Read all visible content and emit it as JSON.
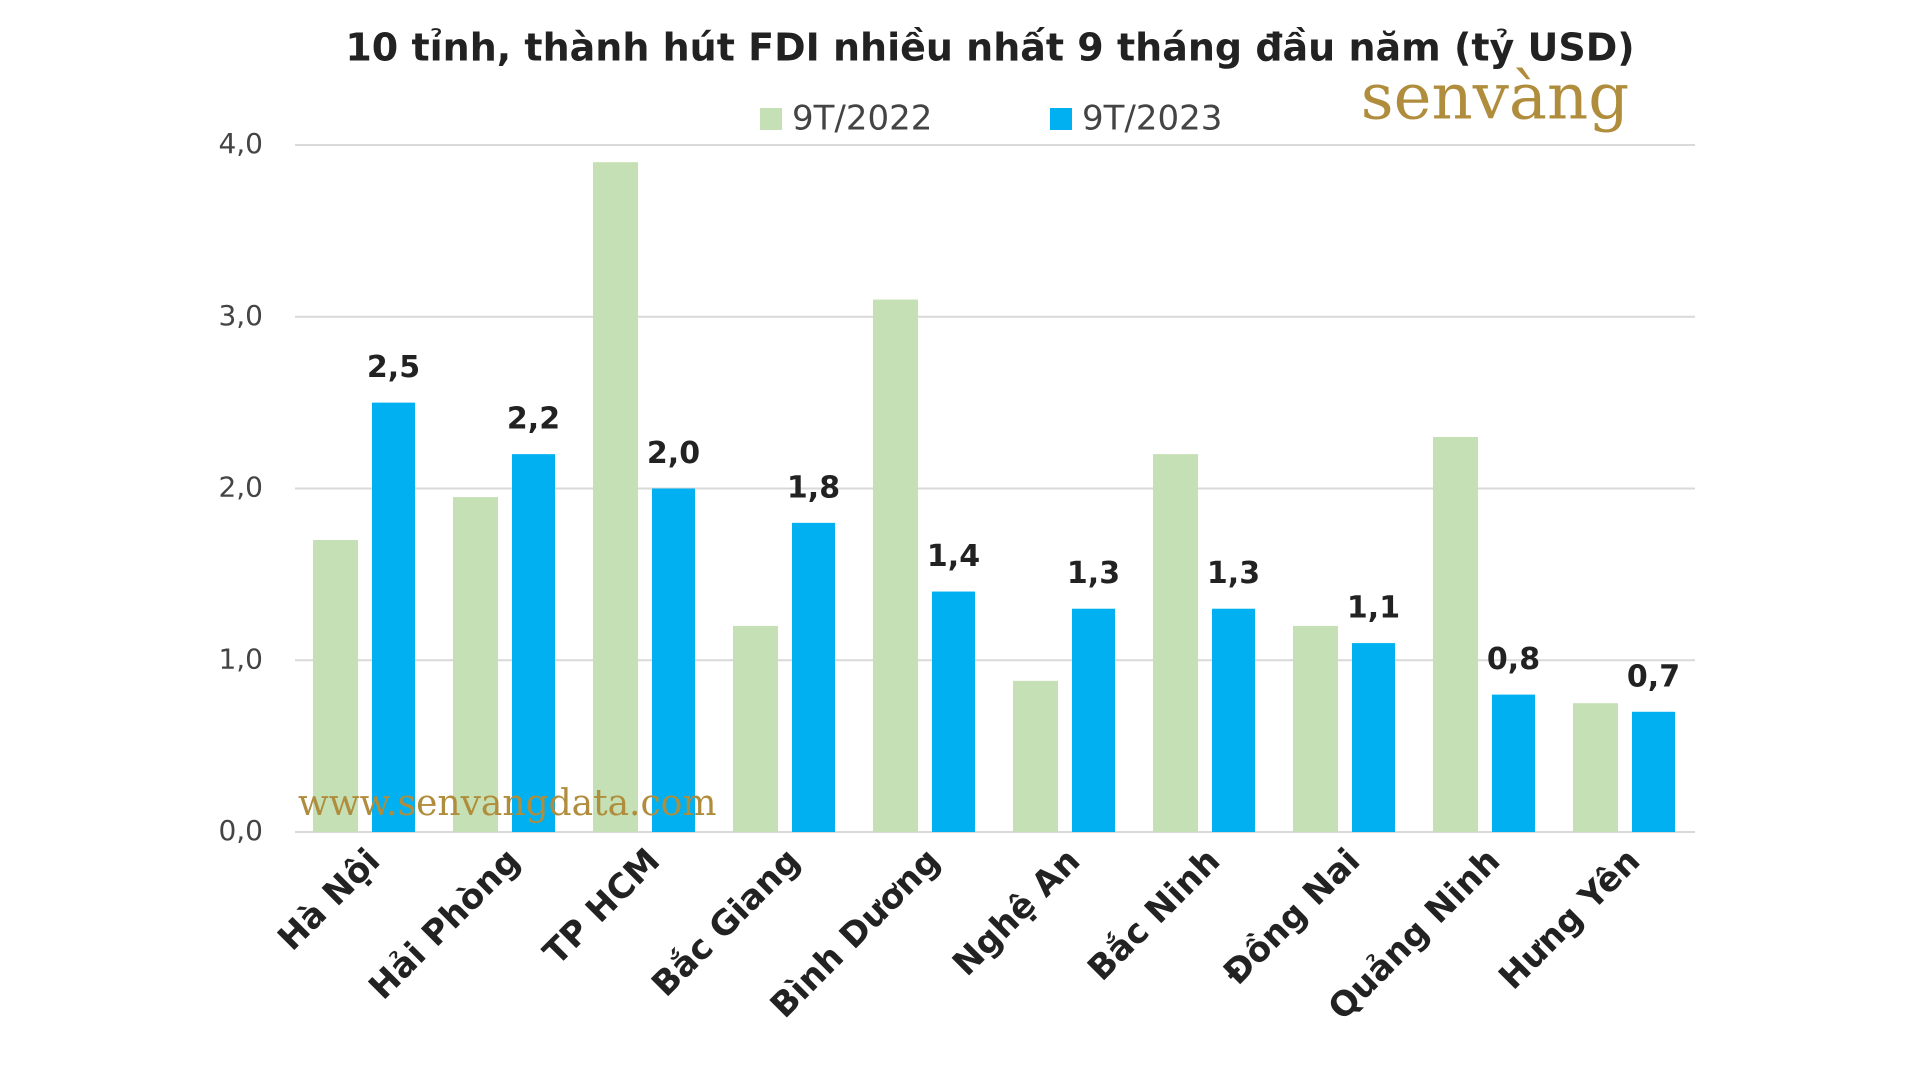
{
  "chart_data": {
    "type": "bar",
    "title": "10 tỉnh, thành hút FDI nhiều nhất 9 tháng đầu năm (tỷ USD)",
    "categories": [
      "Hà Nội",
      "Hải Phòng",
      "TP HCM",
      "Bắc Giang",
      "Bình Dương",
      "Nghệ An",
      "Bắc Ninh",
      "Đồng Nai",
      "Quảng Ninh",
      "Hưng Yên"
    ],
    "series": [
      {
        "name": "9T/2022",
        "color": "#c5e0b4",
        "values": [
          1.7,
          1.95,
          3.9,
          1.2,
          3.1,
          0.88,
          2.2,
          1.2,
          2.3,
          0.75
        ]
      },
      {
        "name": "9T/2023",
        "color": "#00b0f0",
        "values": [
          2.5,
          2.2,
          2.0,
          1.8,
          1.4,
          1.3,
          1.3,
          1.1,
          0.8,
          0.7
        ],
        "value_labels": [
          "2,5",
          "2,2",
          "2,0",
          "1,8",
          "1,4",
          "1,3",
          "1,3",
          "1,1",
          "0,8",
          "0,7"
        ]
      }
    ],
    "ylim": [
      0,
      4
    ],
    "yticks": [
      {
        "value": 0,
        "label": "0,0"
      },
      {
        "value": 1,
        "label": "1,0"
      },
      {
        "value": 2,
        "label": "2,0"
      },
      {
        "value": 3,
        "label": "3,0"
      },
      {
        "value": 4,
        "label": "4,0"
      }
    ],
    "grid": true,
    "legend": "top"
  },
  "watermark": {
    "logo": "senvàng",
    "url": "www.senvangdata.com"
  }
}
